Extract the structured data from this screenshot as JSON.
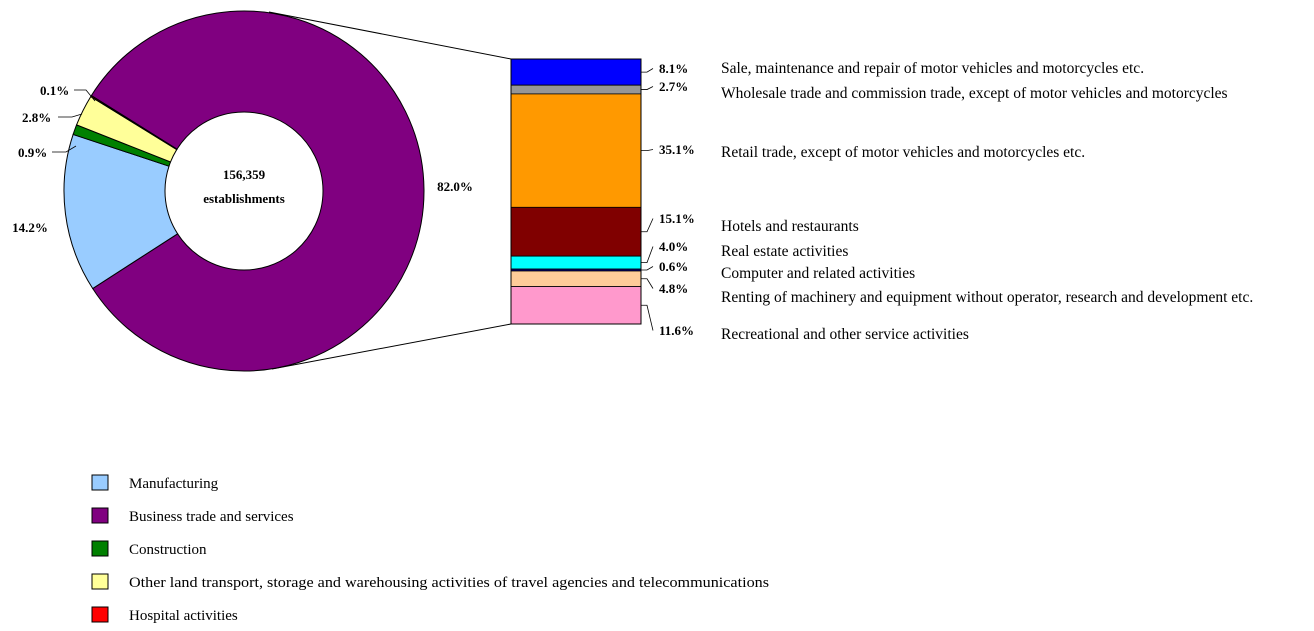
{
  "chart_data": {
    "type": "pie",
    "center_label": {
      "line1": "156,359",
      "line2": "establishments"
    },
    "donut": {
      "slices": [
        {
          "name": "Business trade and services",
          "value": 82.0,
          "label": "82.0%",
          "color": "#800080"
        },
        {
          "name": "Manufacturing",
          "value": 14.2,
          "label": "14.2%",
          "color": "#99ccff"
        },
        {
          "name": "Construction",
          "value": 0.9,
          "label": "0.9%",
          "color": "#008000"
        },
        {
          "name": "Other land transport, storage and warehousing activities of travel agencies and  telecommunications",
          "value": 2.8,
          "label": "2.8%",
          "color": "#ffff99"
        },
        {
          "name": "Hospital activities",
          "value": 0.1,
          "label": "0.1%",
          "color": "#ff0000"
        }
      ]
    },
    "breakdown": {
      "parent": "Business trade and services",
      "type": "stacked-bar",
      "segments": [
        {
          "name": "Sale, maintenance and repair of motor vehicles and motorcycles etc.",
          "value": 8.1,
          "label": "8.1%",
          "color": "#0000ff"
        },
        {
          "name": "Wholesale trade and commission trade, except of motor vehicles and motorcycles",
          "value": 2.7,
          "label": "2.7%",
          "color": "#969696"
        },
        {
          "name": "Retail trade, except of motor vehicles and motorcycles etc.",
          "value": 35.1,
          "label": "35.1%",
          "color": "#ff9900"
        },
        {
          "name": "Hotels and restaurants",
          "value": 15.1,
          "label": "15.1%",
          "color": "#800000"
        },
        {
          "name": "Real estate activities",
          "value": 4.0,
          "label": "4.0%",
          "color": "#00ffff"
        },
        {
          "name": "Computer and related activities",
          "value": 0.6,
          "label": "0.6%",
          "color": "#000080"
        },
        {
          "name": "Renting of machinery and equipment  without  operator, research and development etc.",
          "value": 4.8,
          "label": "4.8%",
          "color": "#ffcc99"
        },
        {
          "name": "Recreational and other service activities",
          "value": 11.6,
          "label": "11.6%",
          "color": "#ff99cc"
        }
      ]
    },
    "legend": {
      "position": "bottom-left",
      "items": [
        {
          "name": "Manufacturing",
          "color": "#99ccff"
        },
        {
          "name": "Business trade and services",
          "color": "#800080"
        },
        {
          "name": "Construction",
          "color": "#008000"
        },
        {
          "name": "Other land transport, storage and warehousing activities of travel agencies and  telecommunications",
          "color": "#ffff99"
        },
        {
          "name": "Hospital activities",
          "color": "#ff0000"
        }
      ]
    }
  }
}
